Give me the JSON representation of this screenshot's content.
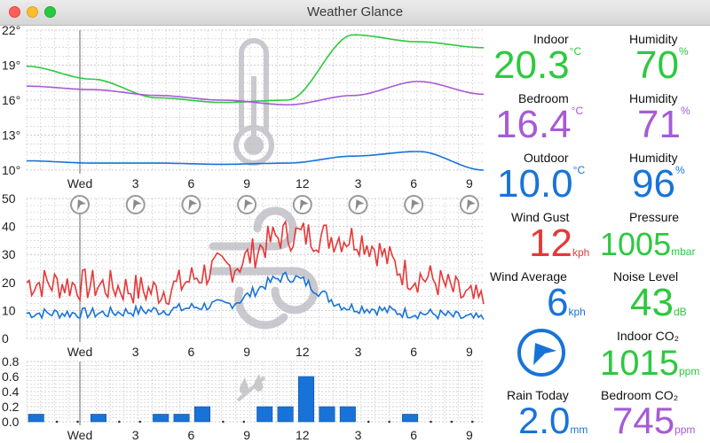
{
  "window": {
    "title": "Weather Glance"
  },
  "colors": {
    "green": "#2ec840",
    "purple": "#a55bd6",
    "blue": "#1873d9",
    "red": "#e63838",
    "grid": "#bdbdbd",
    "icon_gray": "#c9c9cf"
  },
  "charts": {
    "time_ticks": [
      "Wed",
      "3",
      "6",
      "9",
      "12",
      "3",
      "6",
      "9"
    ],
    "temperature": {
      "y_ticks": [
        "22°",
        "19°",
        "16°",
        "13°",
        "10°"
      ],
      "ylim": [
        10,
        22
      ],
      "icon": "thermometer-icon"
    },
    "wind": {
      "y_ticks": [
        "50",
        "40",
        "30",
        "20",
        "10",
        "0"
      ],
      "ylim": [
        0,
        50
      ],
      "icon": "wind-icon",
      "direction_icon": "wind-direction-arrow-icon"
    },
    "rain": {
      "y_ticks": [
        "0.8",
        "0.6",
        "0.4",
        "0.2",
        "0.0"
      ],
      "ylim": [
        0,
        0.8
      ],
      "icon": "rain-icon"
    }
  },
  "chart_data": [
    {
      "type": "line",
      "x": [
        "Wed",
        "3",
        "6",
        "9",
        "12",
        "3",
        "6",
        "9"
      ],
      "ylim": [
        10,
        22
      ],
      "series": [
        {
          "values": [
            18.9,
            17.8,
            16.2,
            15.8,
            16.0,
            21.6,
            21.0,
            20.5
          ],
          "color": "#2ec840"
        },
        {
          "values": [
            17.2,
            16.9,
            16.4,
            16.0,
            15.6,
            16.4,
            17.6,
            16.5
          ],
          "color": "#a55bd6"
        },
        {
          "values": [
            10.8,
            10.6,
            10.6,
            10.5,
            10.6,
            11.2,
            11.6,
            10.0
          ],
          "color": "#1873d9"
        }
      ]
    },
    {
      "type": "line",
      "x": [
        "Wed",
        "3",
        "6",
        "9",
        "12",
        "3",
        "6",
        "9"
      ],
      "ylim": [
        0,
        50
      ],
      "series": [
        {
          "values": [
            20,
            19,
            17,
            25,
            37,
            36,
            22,
            13
          ],
          "color": "#e63838"
        },
        {
          "values": [
            9,
            9,
            10,
            12,
            22,
            11,
            9,
            7
          ],
          "color": "#1873d9"
        }
      ]
    },
    {
      "type": "bar",
      "categories": [
        "Wed",
        "",
        "",
        "3",
        "",
        "",
        "6",
        "",
        "",
        "9",
        "",
        "",
        "12",
        "",
        "",
        "3",
        "",
        "",
        "6",
        "",
        "",
        "9"
      ],
      "ylim": [
        0,
        0.8
      ],
      "values": [
        0.1,
        0,
        0,
        0.1,
        0,
        0,
        0.1,
        0.1,
        0.2,
        0,
        0,
        0.2,
        0.2,
        0.6,
        0.2,
        0.2,
        0,
        0,
        0.1,
        0,
        0,
        0
      ],
      "color": "#1873d9"
    }
  ],
  "readings": {
    "indoor_temp": {
      "label": "Indoor",
      "value": "20.3",
      "unit": "°C",
      "color": "#2ec840"
    },
    "indoor_hum": {
      "label": "Humidity",
      "value": "70",
      "unit": "%",
      "color": "#2ec840"
    },
    "bedroom_temp": {
      "label": "Bedroom",
      "value": "16.4",
      "unit": "°C",
      "color": "#a55bd6"
    },
    "bedroom_hum": {
      "label": "Humidity",
      "value": "71",
      "unit": "%",
      "color": "#a55bd6"
    },
    "outdoor_temp": {
      "label": "Outdoor",
      "value": "10.0",
      "unit": "°C",
      "color": "#1873d9"
    },
    "outdoor_hum": {
      "label": "Humidity",
      "value": "96",
      "unit": "%",
      "color": "#1873d9"
    },
    "wind_gust": {
      "label": "Wind Gust",
      "value": "12",
      "unit": "kph",
      "color": "#e63838"
    },
    "pressure": {
      "label": "Pressure",
      "value": "1005",
      "unit": "mbar",
      "color": "#2ec840"
    },
    "wind_avg": {
      "label": "Wind Average",
      "value": "6",
      "unit": "kph",
      "color": "#1873d9"
    },
    "noise": {
      "label": "Noise Level",
      "value": "43",
      "unit": "dB",
      "color": "#2ec840"
    },
    "indoor_co2": {
      "label": "Indoor CO₂",
      "value": "1015",
      "unit": "ppm",
      "color": "#2ec840"
    },
    "rain_today": {
      "label": "Rain Today",
      "value": "2.0",
      "unit": "mm",
      "color": "#1873d9"
    },
    "bedroom_co2": {
      "label": "Bedroom CO₂",
      "value": "745",
      "unit": "ppm",
      "color": "#a55bd6"
    },
    "wind_direction_icon": "compass-arrow-icon"
  }
}
